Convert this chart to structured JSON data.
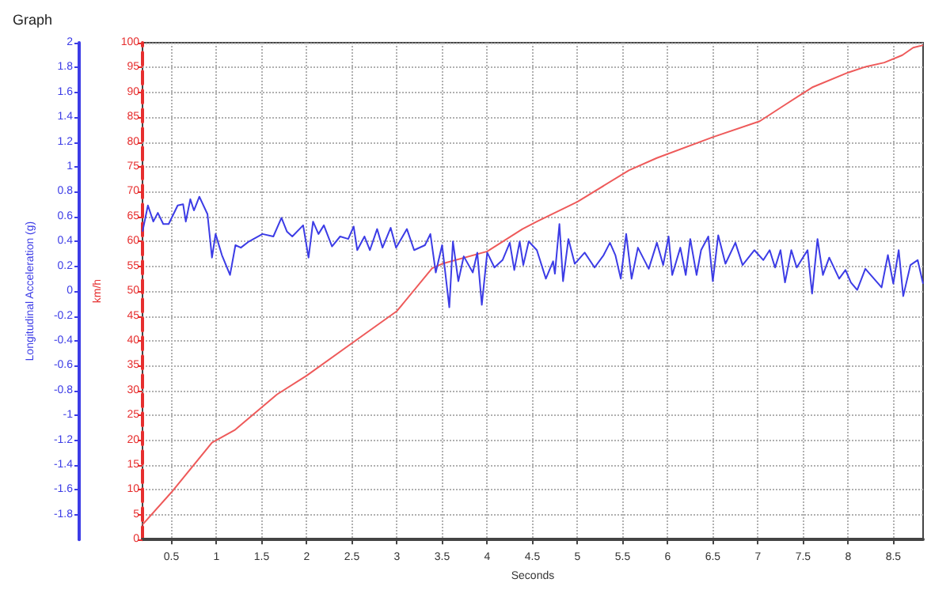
{
  "chart_data": {
    "type": "line",
    "title": "Graph",
    "xlabel": "Seconds",
    "ylabel": "Longitudinal Acceleration (g)",
    "y2label": "km/h",
    "xlim": [
      0.18,
      8.83
    ],
    "xticks": [
      0.5,
      1,
      1.5,
      2,
      2.5,
      3,
      3.5,
      4,
      4.5,
      5,
      5.5,
      6,
      6.5,
      7,
      7.5,
      8,
      8.5
    ],
    "ylim": [
      -2,
      2
    ],
    "yticks": [
      -1.8,
      -1.6,
      -1.4,
      -1.2,
      -1,
      -0.8,
      -0.6,
      -0.4,
      -0.2,
      0,
      0.2,
      0.4,
      0.6,
      0.8,
      1,
      1.2,
      1.4,
      1.6,
      1.8,
      2
    ],
    "y2lim": [
      0,
      100
    ],
    "y2ticks": [
      0,
      5,
      10,
      15,
      20,
      25,
      30,
      35,
      40,
      45,
      50,
      55,
      60,
      65,
      70,
      75,
      80,
      85,
      90,
      95,
      100
    ],
    "grid": true,
    "marker": "none",
    "line_style": "solid",
    "series": [
      {
        "color": "#3c3ce6",
        "axis": "y",
        "x": [
          0.18,
          0.24,
          0.3,
          0.35,
          0.41,
          0.47,
          0.57,
          0.63,
          0.66,
          0.71,
          0.75,
          0.81,
          0.9,
          0.95,
          0.99,
          1.06,
          1.15,
          1.21,
          1.27,
          1.36,
          1.51,
          1.63,
          1.72,
          1.78,
          1.84,
          1.96,
          2.02,
          2.07,
          2.13,
          2.19,
          2.28,
          2.37,
          2.46,
          2.52,
          2.56,
          2.64,
          2.7,
          2.78,
          2.84,
          2.93,
          2.99,
          3.11,
          3.19,
          3.31,
          3.37,
          3.43,
          3.5,
          3.58,
          3.62,
          3.68,
          3.74,
          3.84,
          3.89,
          3.94,
          4.0,
          4.08,
          4.17,
          4.25,
          4.3,
          4.36,
          4.4,
          4.46,
          4.55,
          4.65,
          4.73,
          4.75,
          4.8,
          4.84,
          4.9,
          4.97,
          5.08,
          5.19,
          5.29,
          5.36,
          5.42,
          5.48,
          5.54,
          5.6,
          5.67,
          5.79,
          5.88,
          5.95,
          6.01,
          6.05,
          6.14,
          6.2,
          6.25,
          6.32,
          6.37,
          6.45,
          6.5,
          6.56,
          6.64,
          6.75,
          6.83,
          6.96,
          7.06,
          7.13,
          7.19,
          7.25,
          7.3,
          7.37,
          7.43,
          7.55,
          7.6,
          7.66,
          7.72,
          7.79,
          7.9,
          7.97,
          8.03,
          8.1,
          8.19,
          8.37,
          8.44,
          8.5,
          8.56,
          8.61,
          8.69,
          8.77,
          8.83
        ],
        "values": [
          0.48,
          0.69,
          0.56,
          0.63,
          0.54,
          0.54,
          0.69,
          0.7,
          0.56,
          0.74,
          0.65,
          0.76,
          0.62,
          0.27,
          0.46,
          0.29,
          0.13,
          0.37,
          0.35,
          0.4,
          0.46,
          0.44,
          0.59,
          0.48,
          0.44,
          0.53,
          0.27,
          0.56,
          0.46,
          0.53,
          0.36,
          0.44,
          0.42,
          0.52,
          0.33,
          0.44,
          0.33,
          0.5,
          0.35,
          0.51,
          0.35,
          0.5,
          0.33,
          0.37,
          0.46,
          0.15,
          0.37,
          -0.13,
          0.4,
          0.08,
          0.28,
          0.15,
          0.31,
          -0.11,
          0.31,
          0.19,
          0.25,
          0.39,
          0.17,
          0.4,
          0.21,
          0.4,
          0.33,
          0.1,
          0.24,
          0.14,
          0.54,
          0.08,
          0.42,
          0.22,
          0.31,
          0.19,
          0.29,
          0.39,
          0.29,
          0.1,
          0.46,
          0.1,
          0.35,
          0.18,
          0.39,
          0.21,
          0.44,
          0.13,
          0.35,
          0.13,
          0.42,
          0.13,
          0.33,
          0.44,
          0.08,
          0.45,
          0.22,
          0.39,
          0.21,
          0.33,
          0.25,
          0.33,
          0.19,
          0.33,
          0.07,
          0.33,
          0.19,
          0.33,
          -0.02,
          0.42,
          0.13,
          0.27,
          0.1,
          0.17,
          0.07,
          0.01,
          0.18,
          0.03,
          0.29,
          0.06,
          0.33,
          -0.04,
          0.21,
          0.25,
          0.06
        ]
      },
      {
        "color": "#ee5a5a",
        "axis": "y2",
        "x": [
          0.18,
          0.5,
          0.95,
          1.2,
          1.67,
          2.0,
          2.5,
          3.0,
          3.39,
          3.5,
          4.0,
          4.39,
          4.55,
          5.0,
          5.57,
          5.88,
          6.5,
          7.02,
          7.3,
          7.6,
          8.0,
          8.2,
          8.4,
          8.6,
          8.72,
          8.83
        ],
        "values": [
          3,
          9.5,
          19.5,
          22,
          29.2,
          33,
          39.5,
          46,
          54.6,
          55.5,
          58,
          62.5,
          64,
          68,
          74.3,
          76.8,
          81,
          84.2,
          87.5,
          91,
          94,
          95.2,
          96,
          97.5,
          99,
          99.5
        ]
      }
    ]
  }
}
